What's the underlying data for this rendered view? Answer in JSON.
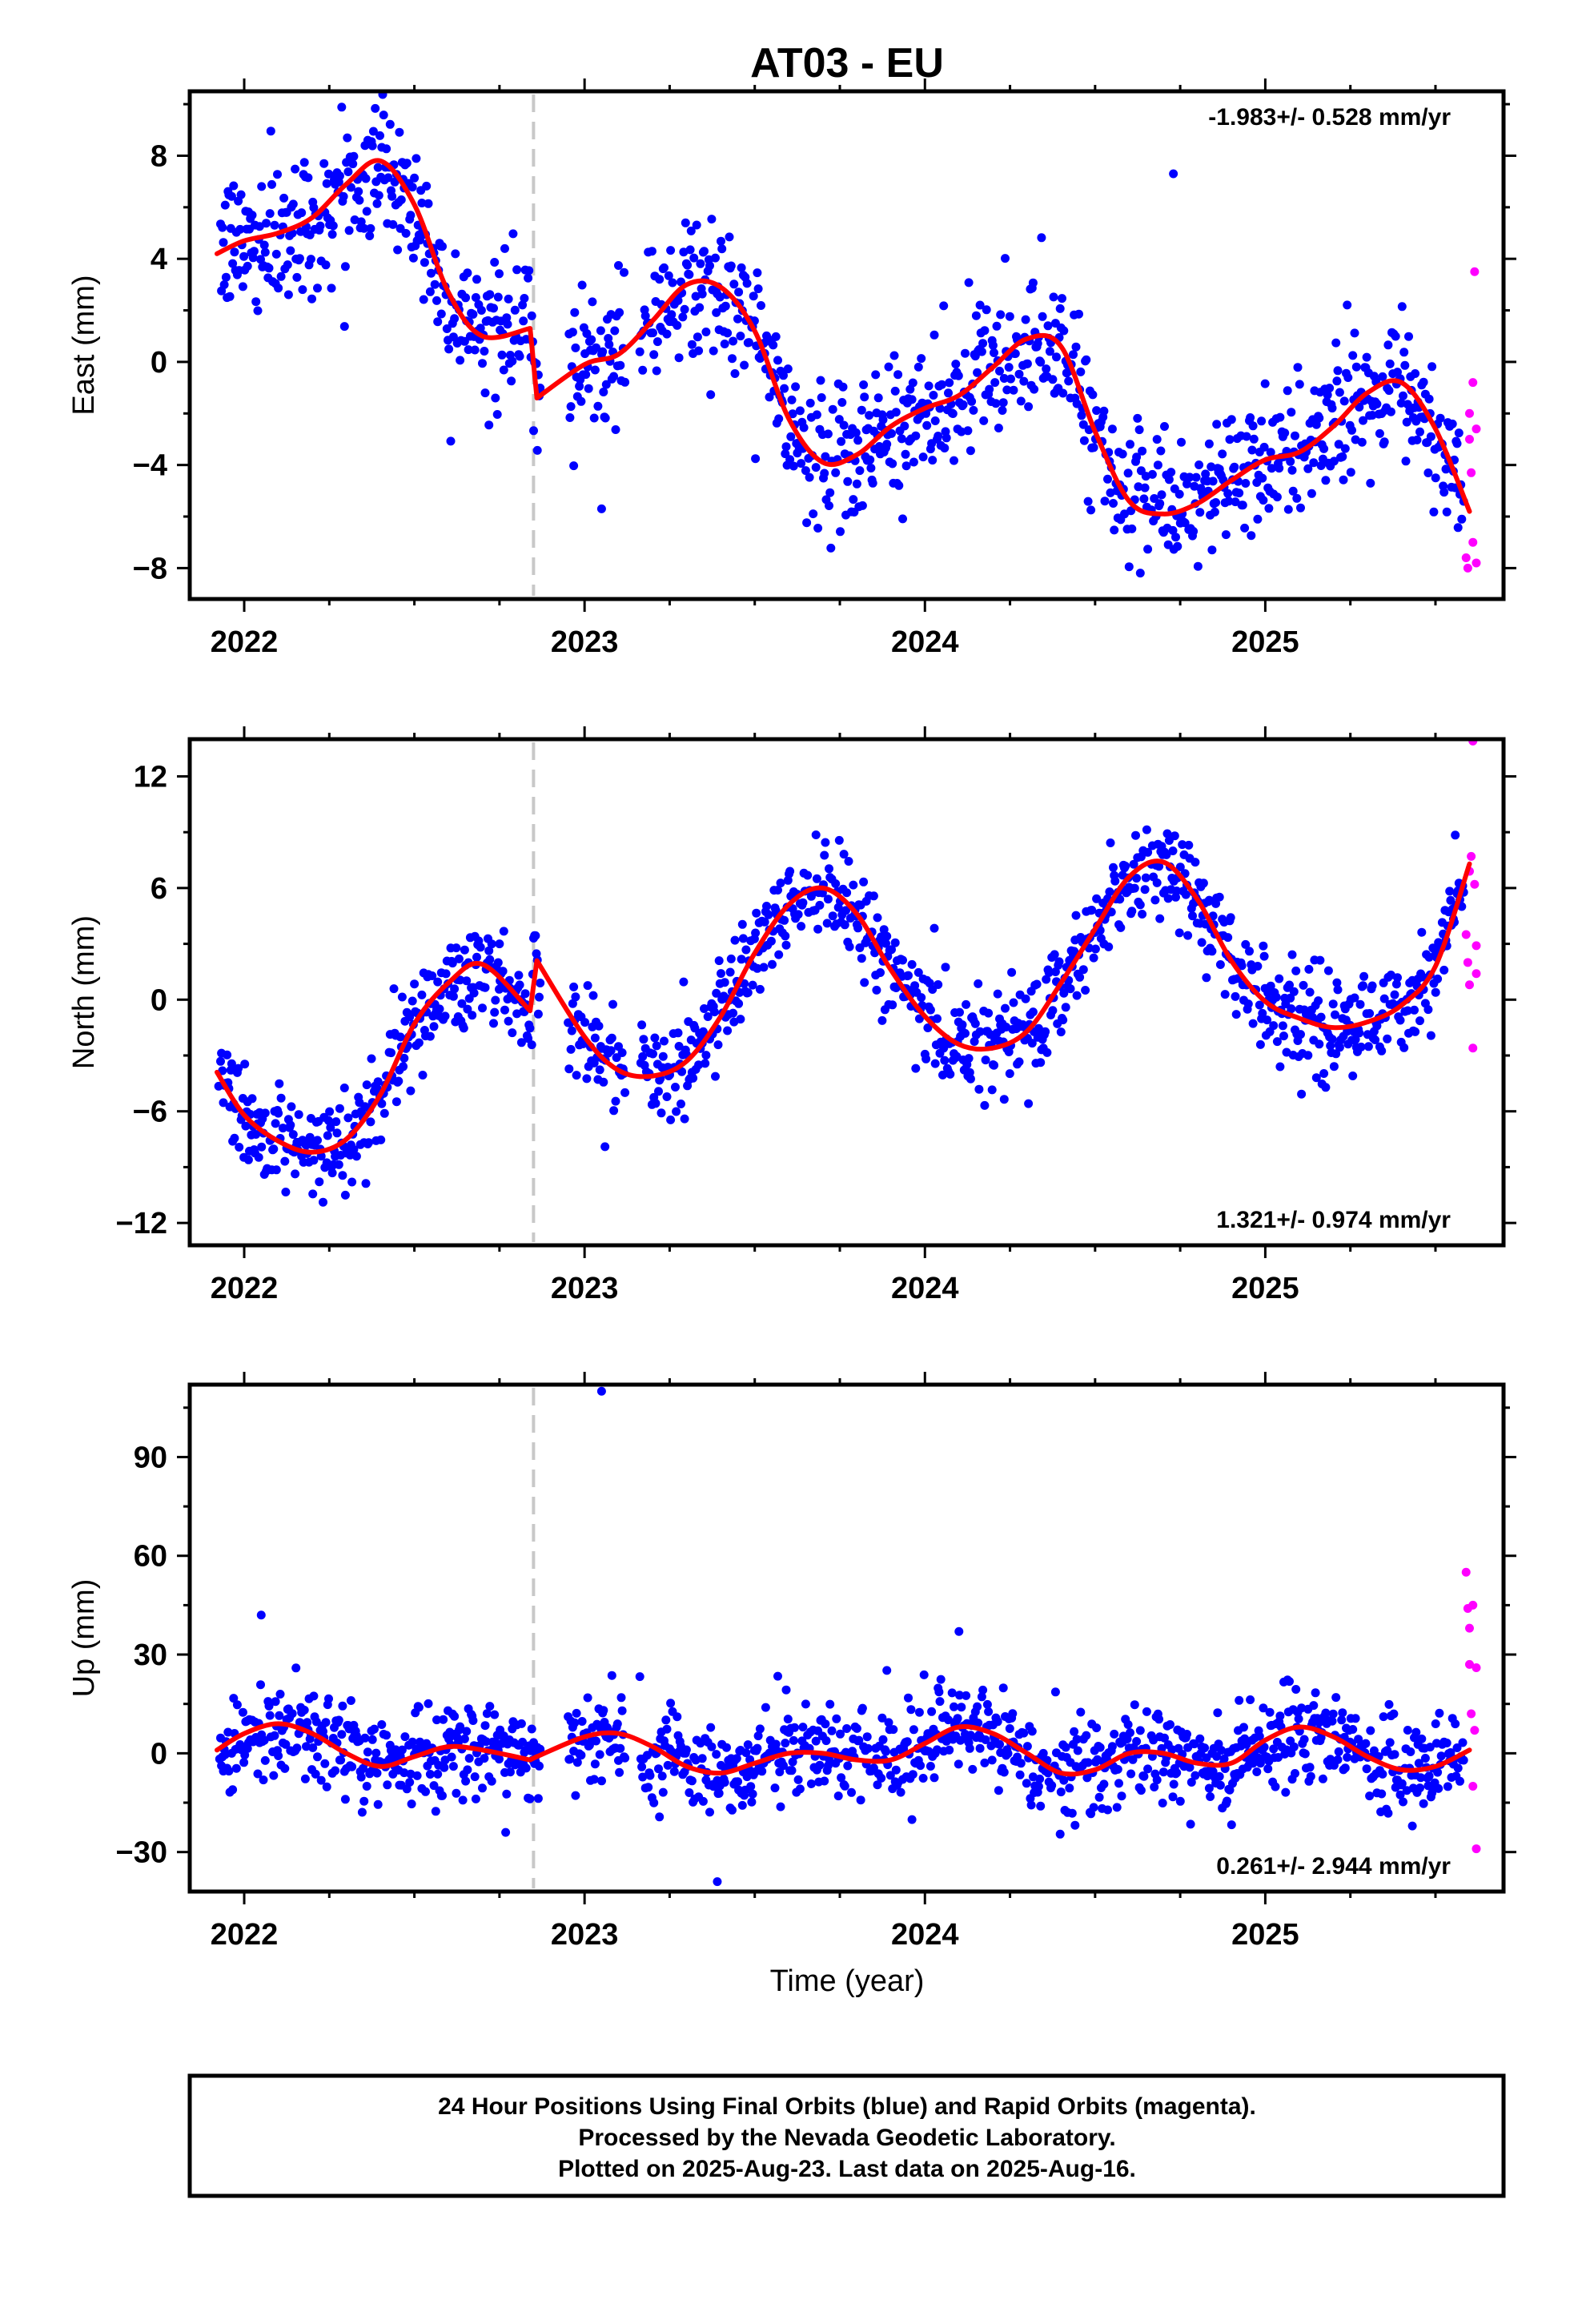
{
  "title": "AT03 - EU",
  "xlabel": "Time (year)",
  "footer": {
    "line1": "24 Hour Positions Using Final Orbits (blue) and Rapid Orbits (magenta).",
    "line2": "Processed by the Nevada Geodetic Laboratory.",
    "line3": "Plotted on 2025-Aug-23. Last data on 2025-Aug-16."
  },
  "colors": {
    "final_orbits": "#0000ff",
    "rapid_orbits": "#ff00ff",
    "model_fit": "#ff0000",
    "event_line": "#c8c8c8",
    "frame": "#000000"
  },
  "chart_data": [
    {
      "type": "scatter",
      "component": "East",
      "ylabel": "East (mm)",
      "xlim": [
        2021.84,
        2025.7
      ],
      "ylim": [
        -9.2,
        10.5
      ],
      "xticks": [
        2022,
        2023,
        2024,
        2025
      ],
      "yticks": [
        -8,
        -4,
        0,
        4,
        8
      ],
      "rate_label": "-1.983+/- 0.528 mm/yr",
      "rate_position": "top-right",
      "event_line_x": 2022.85,
      "model": {
        "offset_x": 2022.85,
        "segments": [
          {
            "x": [
              2021.92,
              2022.0,
              2022.1,
              2022.2,
              2022.3,
              2022.4,
              2022.5,
              2022.6,
              2022.7,
              2022.84
            ],
            "y": [
              4.2,
              4.7,
              5.0,
              5.6,
              6.9,
              7.8,
              6.1,
              2.7,
              1.0,
              1.3
            ]
          },
          {
            "x": [
              2022.86,
              2023.0,
              2023.1,
              2023.2,
              2023.3,
              2023.4,
              2023.5,
              2023.6,
              2023.7,
              2023.8,
              2023.9,
              2024.0,
              2024.1,
              2024.2,
              2024.3,
              2024.4,
              2024.5,
              2024.6,
              2024.7,
              2024.8,
              2024.9,
              2025.0,
              2025.1,
              2025.2,
              2025.3,
              2025.4,
              2025.5,
              2025.6
            ],
            "y": [
              -1.4,
              -0.1,
              0.3,
              1.6,
              3.0,
              2.9,
              1.2,
              -2.2,
              -3.9,
              -3.6,
              -2.5,
              -1.8,
              -1.3,
              -0.2,
              0.9,
              0.6,
              -2.7,
              -5.4,
              -5.9,
              -5.5,
              -4.6,
              -3.8,
              -3.5,
              -2.5,
              -1.2,
              -0.8,
              -2.6,
              -5.8
            ]
          }
        ]
      },
      "rapid_points": {
        "x": [
          2025.59,
          2025.595,
          2025.6,
          2025.6,
          2025.605,
          2025.61,
          2025.61,
          2025.615,
          2025.62,
          2025.62
        ],
        "y": [
          -7.6,
          -8.0,
          -2.0,
          -3.0,
          -4.3,
          -0.8,
          -7.0,
          3.5,
          -2.6,
          -7.8
        ]
      },
      "outliers": {
        "x": [
          2023.05,
          2024.73
        ],
        "y": [
          -5.7,
          7.3
        ]
      }
    },
    {
      "type": "scatter",
      "component": "North",
      "ylabel": "North (mm)",
      "xlim": [
        2021.84,
        2025.7
      ],
      "ylim": [
        -13.2,
        14.0
      ],
      "xticks": [
        2022,
        2023,
        2024,
        2025
      ],
      "yticks": [
        -12,
        -6,
        0,
        6,
        12
      ],
      "rate_label": "1.321+/- 0.974 mm/yr",
      "rate_position": "bottom-right",
      "event_line_x": 2022.85,
      "model": {
        "offset_x": 2022.85,
        "segments": [
          {
            "x": [
              2021.92,
              2022.0,
              2022.1,
              2022.2,
              2022.3,
              2022.4,
              2022.5,
              2022.6,
              2022.7,
              2022.84
            ],
            "y": [
              -3.9,
              -6.2,
              -7.6,
              -8.2,
              -7.5,
              -5.1,
              -1.3,
              0.9,
              1.9,
              -0.6
            ]
          },
          {
            "x": [
              2022.86,
              2023.0,
              2023.1,
              2023.2,
              2023.3,
              2023.4,
              2023.5,
              2023.6,
              2023.7,
              2023.8,
              2023.9,
              2024.0,
              2024.1,
              2024.2,
              2024.3,
              2024.4,
              2024.5,
              2024.6,
              2024.7,
              2024.8,
              2024.9,
              2025.0,
              2025.1,
              2025.2,
              2025.3,
              2025.4,
              2025.5,
              2025.6
            ],
            "y": [
              2.1,
              -2.0,
              -3.8,
              -4.1,
              -3.3,
              -0.9,
              2.5,
              5.1,
              6.0,
              4.6,
              1.6,
              -0.9,
              -2.4,
              -2.6,
              -1.7,
              0.9,
              3.8,
              6.6,
              7.4,
              5.4,
              2.1,
              -0.1,
              -1.0,
              -1.5,
              -1.2,
              -0.3,
              1.8,
              7.3
            ]
          }
        ]
      },
      "rapid_points": {
        "x": [
          2025.59,
          2025.595,
          2025.6,
          2025.6,
          2025.605,
          2025.61,
          2025.61,
          2025.615,
          2025.62,
          2025.62
        ],
        "y": [
          3.5,
          2.0,
          0.8,
          6.9,
          7.7,
          13.9,
          -2.6,
          6.2,
          2.9,
          1.4
        ]
      },
      "outliers": {
        "x": [
          2022.75,
          2023.06
        ],
        "y": [
          3.0,
          -7.9
        ]
      }
    },
    {
      "type": "scatter",
      "component": "Up",
      "ylabel": "Up (mm)",
      "xlim": [
        2021.84,
        2025.7
      ],
      "ylim": [
        -42,
        112
      ],
      "xticks": [
        2022,
        2023,
        2024,
        2025
      ],
      "yticks": [
        -30,
        0,
        30,
        60,
        90
      ],
      "rate_label": "0.261+/- 2.944 mm/yr",
      "rate_position": "bottom-right",
      "event_line_x": 2022.85,
      "model": {
        "offset_x": 2022.85,
        "segments": [
          {
            "x": [
              2021.92,
              2022.0,
              2022.1,
              2022.2,
              2022.3,
              2022.4,
              2022.5,
              2022.6,
              2022.7,
              2022.84
            ],
            "y": [
              1.0,
              6.0,
              9.0,
              6.0,
              0.0,
              -4.0,
              -1.0,
              2.0,
              1.0,
              -2.0
            ]
          },
          {
            "x": [
              2022.86,
              2023.0,
              2023.1,
              2023.2,
              2023.3,
              2023.4,
              2023.5,
              2023.6,
              2023.7,
              2023.8,
              2023.9,
              2024.0,
              2024.1,
              2024.2,
              2024.3,
              2024.4,
              2024.5,
              2024.6,
              2024.7,
              2024.8,
              2024.9,
              2025.0,
              2025.1,
              2025.2,
              2025.3,
              2025.4,
              2025.5,
              2025.6
            ],
            "y": [
              -1.0,
              5.0,
              6.0,
              2.0,
              -4.0,
              -6.0,
              -3.0,
              0.0,
              0.0,
              -2.0,
              -2.0,
              3.0,
              8.0,
              6.0,
              0.0,
              -6.0,
              -5.0,
              0.0,
              0.0,
              -3.0,
              -3.0,
              4.0,
              8.0,
              5.0,
              -1.0,
              -5.0,
              -4.0,
              1.0
            ]
          }
        ]
      },
      "rapid_points": {
        "x": [
          2025.59,
          2025.595,
          2025.6,
          2025.6,
          2025.605,
          2025.61,
          2025.61,
          2025.615,
          2025.62,
          2025.62
        ],
        "y": [
          55.0,
          44.0,
          38.0,
          27.0,
          12.0,
          45.0,
          -10.0,
          7.0,
          -29.0,
          26.0
        ]
      },
      "outliers": {
        "x": [
          2023.05,
          2022.05,
          2023.39,
          2024.1
        ],
        "y": [
          110.0,
          42.0,
          -39.0,
          37.0
        ]
      }
    }
  ]
}
